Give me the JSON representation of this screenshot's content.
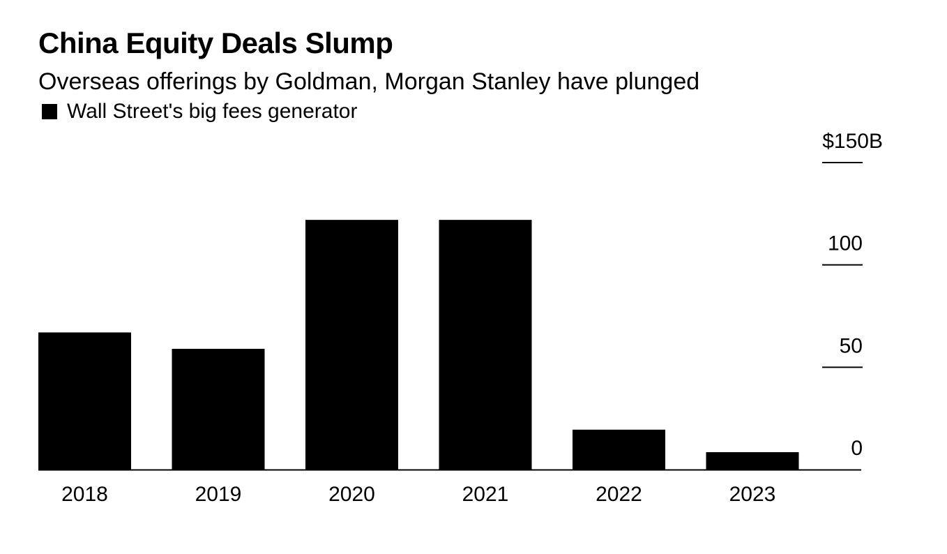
{
  "chart_data": {
    "type": "bar",
    "title": "China Equity Deals Slump",
    "subtitle": "Overseas offerings by Goldman, Morgan Stanley have plunged",
    "legend": {
      "position": "top-left",
      "entries": [
        {
          "label": "Wall Street's big fees generator",
          "color": "#000000"
        }
      ]
    },
    "categories": [
      "2018",
      "2019",
      "2020",
      "2021",
      "2022",
      "2023"
    ],
    "series": [
      {
        "values": [
          67,
          59,
          122,
          122,
          19.5,
          8.5
        ],
        "color": "#000000"
      }
    ],
    "y_axis": {
      "position": "right",
      "ylim": [
        0,
        150
      ],
      "ticks": [
        0,
        50,
        100,
        150
      ],
      "tick_labels": [
        "0",
        "50",
        "100",
        "$150B"
      ],
      "grid": false
    }
  }
}
